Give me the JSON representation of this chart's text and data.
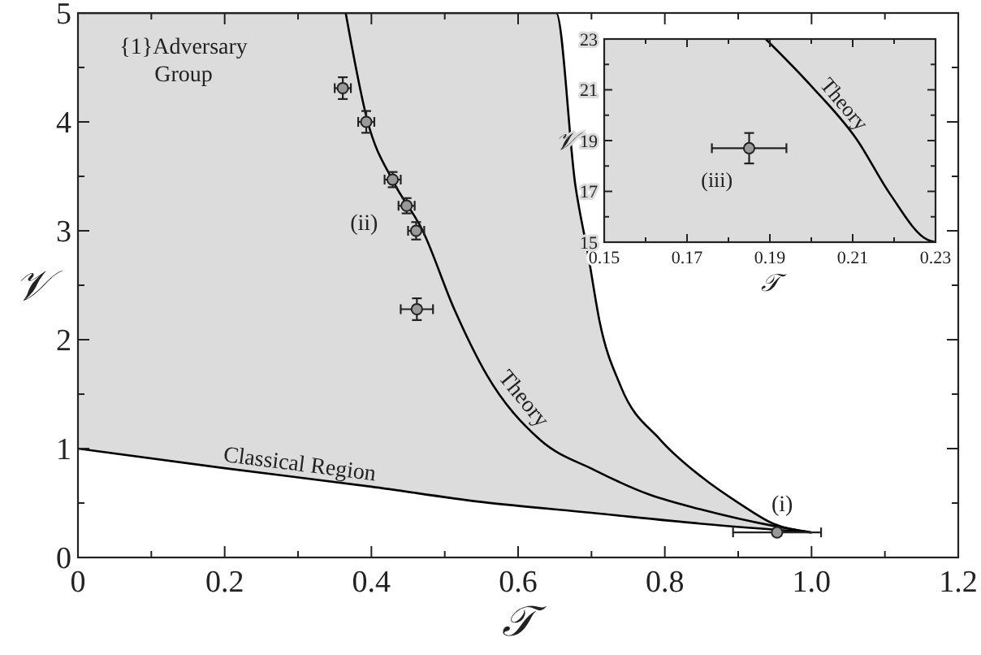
{
  "chart_data": [
    {
      "type": "line",
      "xlabel": "𝒯",
      "ylabel": "𝒱",
      "xlim": [
        0,
        1.2
      ],
      "ylim": [
        0,
        5
      ],
      "xticks": [
        0,
        {
          "value": 0.1,
          "label": null
        },
        0.2,
        {
          "value": 0.3,
          "label": null
        },
        0.4,
        {
          "value": 0.5,
          "label": null
        },
        0.6,
        {
          "value": 0.7,
          "label": null
        },
        0.8,
        {
          "value": 0.9,
          "label": null
        },
        {
          "value": 1,
          "label": "1.0"
        },
        {
          "value": 1.1,
          "label": null
        },
        1.2
      ],
      "yticks": [
        0,
        {
          "value": 0.5,
          "label": null
        },
        1,
        {
          "value": 1.5,
          "label": null
        },
        2,
        {
          "value": 2.5,
          "label": null
        },
        3,
        {
          "value": 3.5,
          "label": null
        },
        4,
        {
          "value": 4.5,
          "label": null
        },
        5
      ],
      "series": [
        {
          "type": "area",
          "color": "#dcdcdc",
          "x": [
            0,
            0.2,
            0.4,
            0.55,
            0.652,
            0.678,
            0.696,
            0.711,
            0.74,
            0.794,
            0.85,
            0.903,
            0.948,
            1.0
          ],
          "values": [
            5,
            5,
            5,
            5,
            5,
            3.42,
            2.76,
            2.17,
            1.57,
            1.08,
            0.74,
            0.49,
            0.31,
            0.23
          ]
        },
        {
          "type": "area",
          "name": "Classical Region",
          "color": "#ffffff",
          "x": [
            0,
            0.2,
            0.4,
            0.55,
            0.7,
            0.85,
            1.0
          ],
          "values": [
            1,
            0.82,
            0.65,
            0.51,
            0.41,
            0.31,
            0.23
          ]
        },
        {
          "name": "Theory",
          "color": "#000000",
          "x": [
            0.365,
            0.395,
            0.43,
            0.47,
            0.513,
            0.557,
            0.63,
            0.705,
            0.778,
            0.85,
            0.948,
            1.0
          ],
          "values": [
            5,
            4,
            3.45,
            3.0,
            2.28,
            1.68,
            1.08,
            0.8,
            0.58,
            0.44,
            0.29,
            0.23
          ]
        },
        {
          "type": "scatter",
          "marker": "circle",
          "color": "#999999",
          "x": [
            0.361,
            0.393,
            0.429,
            0.448,
            0.461,
            0.462,
            0.953
          ],
          "values": [
            4.31,
            4.0,
            3.47,
            3.23,
            3.0,
            2.28,
            0.23
          ],
          "xerrors": [
            0.011,
            0.011,
            0.011,
            0.011,
            0.011,
            0.022,
            0.06
          ],
          "errors": [
            0.1,
            0.1,
            0.07,
            0.07,
            0.08,
            0.1,
            0.03
          ]
        }
      ],
      "annotations": [
        "{1}Adversary Group",
        "(ii)",
        "(i)"
      ]
    },
    {
      "type": "line",
      "xlabel": "𝒯",
      "ylabel": "𝒱",
      "xlim": [
        0.15,
        0.23
      ],
      "ylim": [
        15,
        23
      ],
      "xticks": [
        0.15,
        {
          "value": 0.16,
          "label": null
        },
        0.17,
        {
          "value": 0.18,
          "label": null
        },
        0.19,
        {
          "value": 0.2,
          "label": null
        },
        0.21,
        {
          "value": 0.22,
          "label": null
        },
        0.23
      ],
      "yticks": [
        15,
        {
          "value": 16,
          "label": null
        },
        17,
        {
          "value": 18,
          "label": null
        },
        19,
        {
          "value": 20,
          "label": null
        },
        21,
        {
          "value": 22,
          "label": null
        },
        23
      ],
      "bands": [
        {
          "axis": "x",
          "from": 0.15,
          "to": 0.23,
          "color": "#dcdcdc"
        }
      ],
      "series": [
        {
          "name": "Theory",
          "color": "#000000",
          "x": [
            0.189,
            0.2,
            0.211,
            0.219,
            0.228,
            0.23
          ],
          "values": [
            23,
            21.15,
            19.04,
            16.9,
            15.1,
            15
          ]
        },
        {
          "type": "scatter",
          "marker": "circle",
          "color": "#999999",
          "x": [
            0.185
          ],
          "values": [
            18.7
          ],
          "xerrors": [
            0.009
          ],
          "errors": [
            0.6
          ]
        }
      ],
      "annotations": [
        "(iii)"
      ]
    }
  ]
}
